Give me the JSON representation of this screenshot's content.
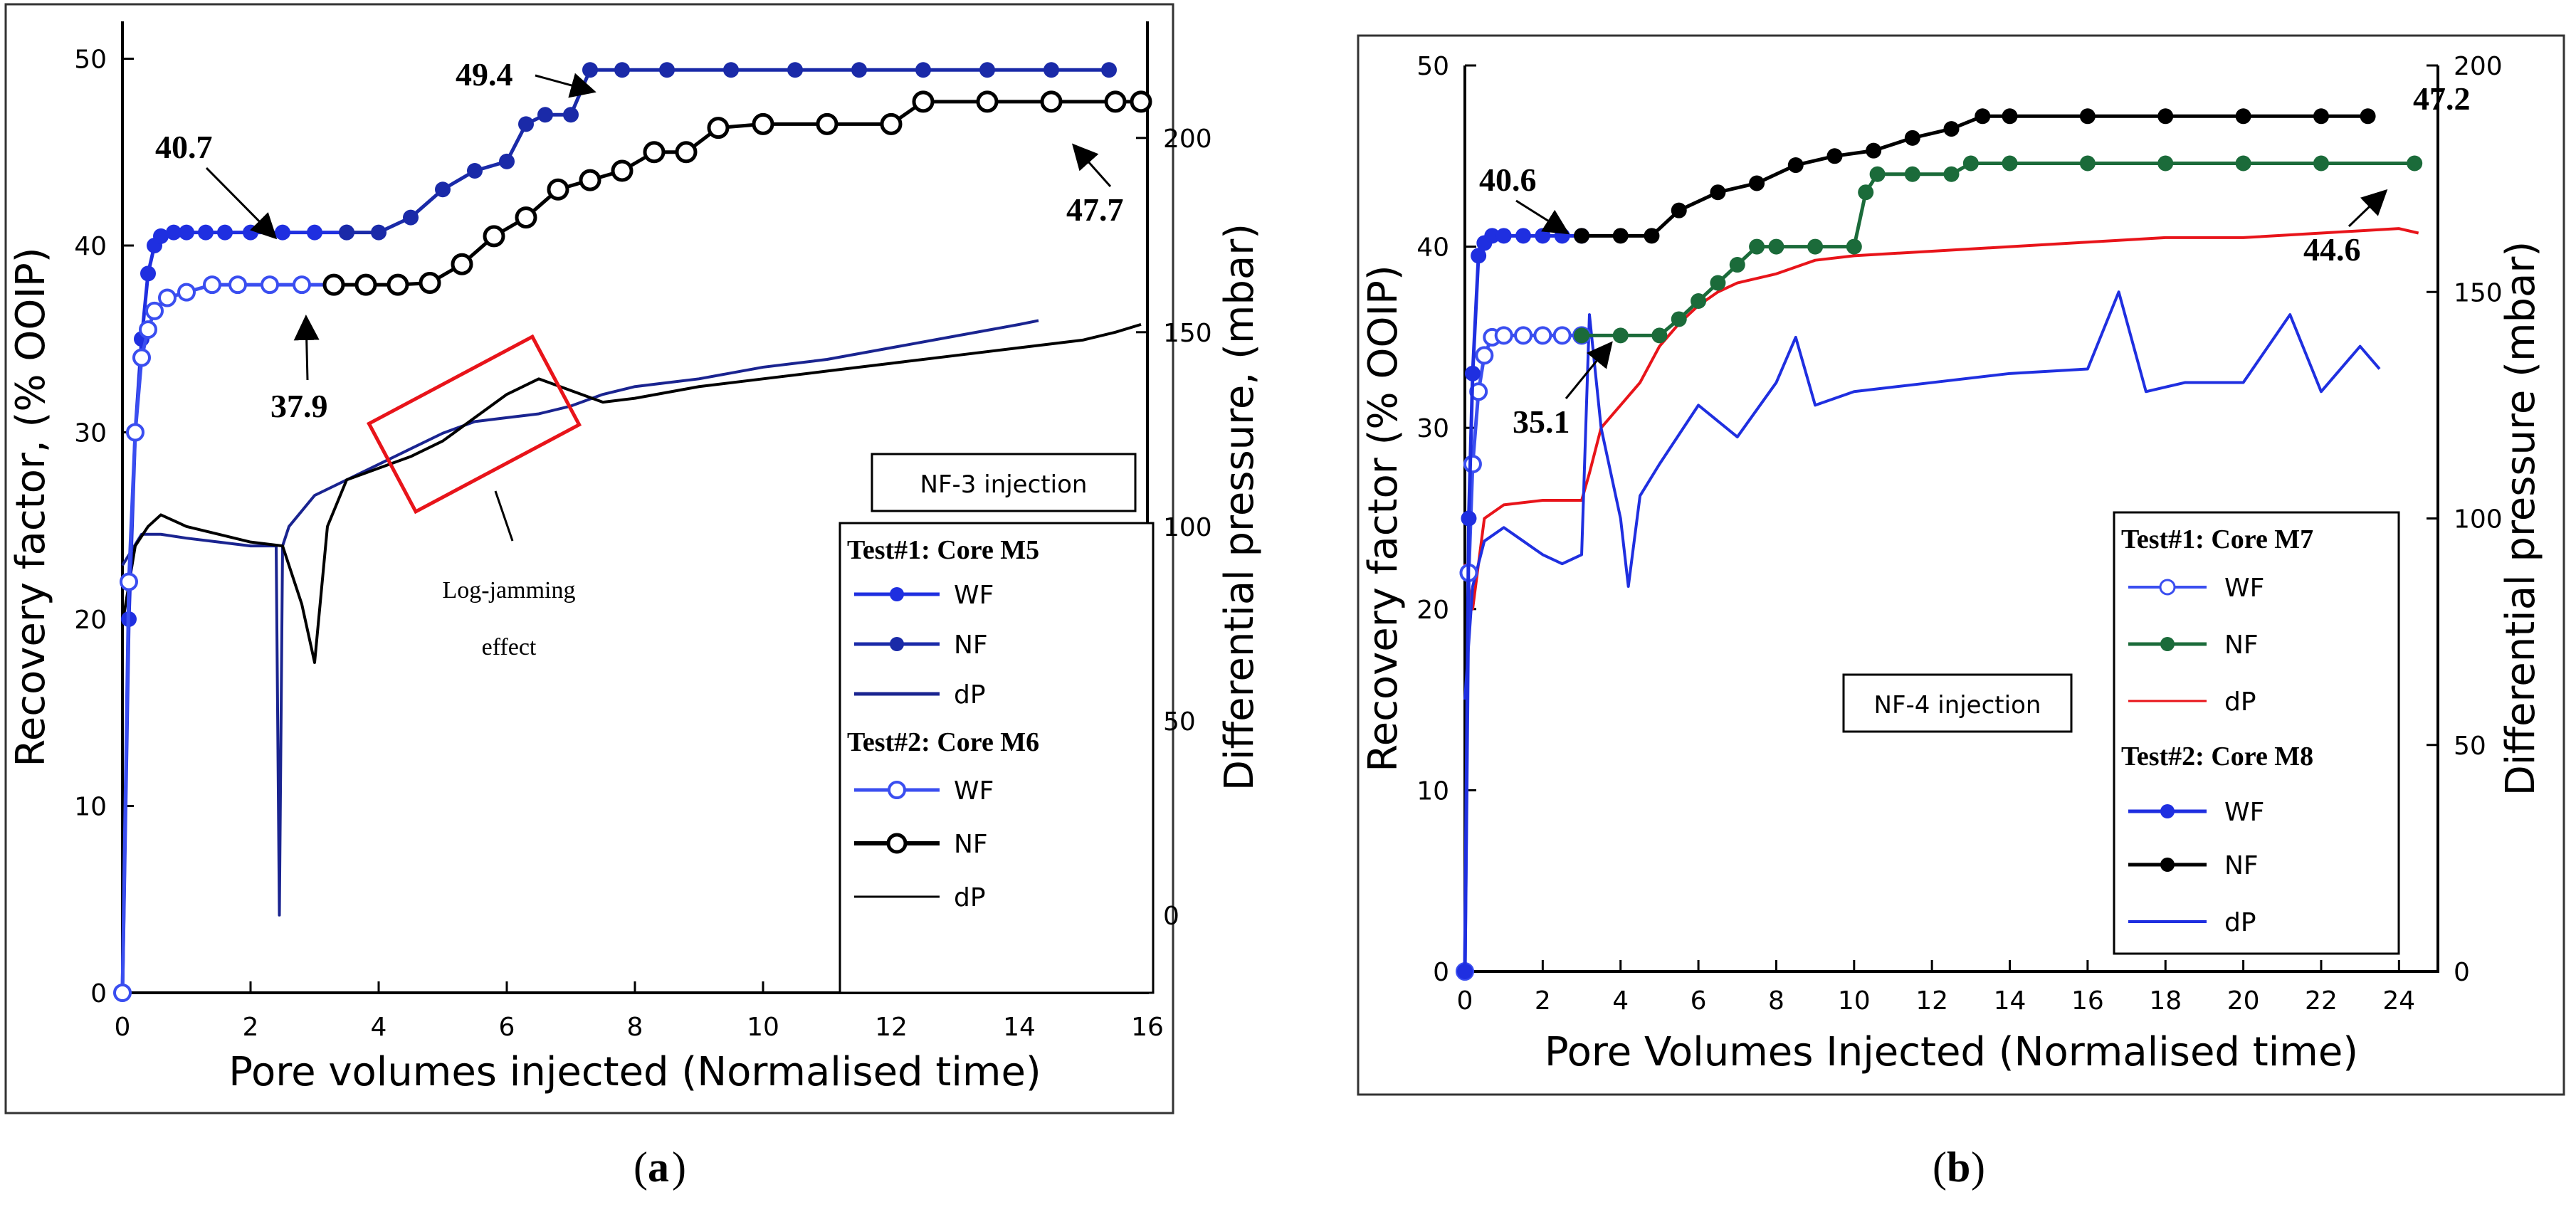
{
  "chart_data": [
    {
      "panel": "a",
      "type": "line",
      "caption_open": "(",
      "caption_letter": "a",
      "caption_close": ")",
      "xlabel": "Pore volumes injected (Normalised time)",
      "ylabel": "Recovery factor, (% OOIP)",
      "y2label": "Differential pressure, (mbar)",
      "xlim": [
        0,
        16
      ],
      "ylim": [
        0,
        52
      ],
      "y2lim": [
        -20,
        230
      ],
      "xticks": [
        0,
        2,
        4,
        6,
        8,
        10,
        12,
        14,
        16
      ],
      "yticks": [
        0,
        10,
        20,
        30,
        40,
        50
      ],
      "y2ticks": [
        0,
        50,
        100,
        150,
        200
      ],
      "injection_label": "NF-3 injection",
      "effect_label_line1": "Log-jamming",
      "effect_label_line2": "effect",
      "annotations": [
        {
          "text": "40.7",
          "x": 1.2,
          "y": 40.7
        },
        {
          "text": "49.4",
          "x": 7.4,
          "y": 49.4
        },
        {
          "text": "37.9",
          "x": 3.4,
          "y": 37.9
        },
        {
          "text": "47.7",
          "x": 15.2,
          "y": 47.7
        }
      ],
      "legend": {
        "groups": [
          {
            "title": "Test#1: Core M5",
            "items": [
              {
                "name": "WF"
              },
              {
                "name": "NF"
              },
              {
                "name": "dP"
              }
            ]
          },
          {
            "title": "Test#2: Core M6",
            "items": [
              {
                "name": "WF"
              },
              {
                "name": "NF"
              },
              {
                "name": "dP"
              }
            ]
          }
        ]
      },
      "series": [
        {
          "name": "Test#1 WF",
          "axis": "left",
          "color": "#1f2fe0",
          "marker": "filled-circle",
          "x": [
            0,
            0.1,
            0.2,
            0.3,
            0.4,
            0.5,
            0.6,
            0.8,
            1.0,
            1.3,
            1.6,
            2.0,
            2.5,
            3.0,
            3.5
          ],
          "y": [
            0,
            20,
            30,
            35,
            38.5,
            40,
            40.5,
            40.7,
            40.7,
            40.7,
            40.7,
            40.7,
            40.7,
            40.7,
            40.7
          ]
        },
        {
          "name": "Test#1 NF",
          "axis": "left",
          "color": "#1a2aa8",
          "marker": "filled-circle",
          "x": [
            3.5,
            4.0,
            4.5,
            5.0,
            5.5,
            6.0,
            6.3,
            6.6,
            7.0,
            7.3,
            7.8,
            8.5,
            9.5,
            10.5,
            11.5,
            12.5,
            13.5,
            14.5,
            15.4
          ],
          "y": [
            40.7,
            40.7,
            41.5,
            43,
            44,
            44.5,
            46.5,
            47,
            47,
            49.4,
            49.4,
            49.4,
            49.4,
            49.4,
            49.4,
            49.4,
            49.4,
            49.4,
            49.4
          ]
        },
        {
          "name": "Test#2 WF",
          "axis": "left",
          "color": "#3a4ef0",
          "marker": "open-circle",
          "x": [
            0,
            0.1,
            0.2,
            0.3,
            0.4,
            0.5,
            0.7,
            1.0,
            1.4,
            1.8,
            2.3,
            2.8,
            3.3
          ],
          "y": [
            0,
            22,
            30,
            34,
            35.5,
            36.5,
            37.2,
            37.5,
            37.9,
            37.9,
            37.9,
            37.9,
            37.9
          ]
        },
        {
          "name": "Test#2 NF",
          "axis": "left",
          "color": "#000000",
          "marker": "hexagon",
          "x": [
            3.3,
            3.8,
            4.3,
            4.8,
            5.3,
            5.8,
            6.3,
            6.8,
            7.3,
            7.8,
            8.3,
            8.8,
            9.3,
            10.0,
            11.0,
            12.0,
            12.5,
            13.5,
            14.5,
            15.5,
            15.9
          ],
          "y": [
            37.9,
            37.9,
            37.9,
            38,
            39,
            40.5,
            41.5,
            43,
            43.5,
            44,
            45,
            45,
            46.3,
            46.5,
            46.5,
            46.5,
            47.7,
            47.7,
            47.7,
            47.7,
            47.7
          ]
        },
        {
          "name": "Test#1 dP",
          "axis": "right",
          "color": "#1a2490",
          "x": [
            0,
            0.3,
            0.6,
            1.0,
            1.5,
            2.0,
            2.4,
            2.45,
            2.5,
            2.6,
            3.0,
            3.5,
            4.0,
            4.5,
            5.0,
            5.5,
            6.0,
            6.5,
            7.0,
            7.5,
            8.0,
            8.5,
            9.0,
            10.0,
            11.0,
            12.0,
            13.0,
            14.0,
            14.3
          ],
          "y": [
            90,
            98,
            98,
            97,
            96,
            95,
            95,
            0,
            95,
            100,
            108,
            112,
            116,
            120,
            124,
            127,
            128,
            129,
            131,
            134,
            136,
            137,
            138,
            141,
            143,
            146,
            149,
            152,
            153
          ]
        },
        {
          "name": "Test#2 dP",
          "axis": "right",
          "color": "#000000",
          "x": [
            0,
            0.2,
            0.4,
            0.6,
            1.0,
            1.5,
            2.0,
            2.5,
            2.8,
            3.0,
            3.2,
            3.5,
            4.0,
            4.5,
            5.0,
            5.5,
            6.0,
            6.5,
            7.0,
            7.5,
            8.0,
            9.0,
            10.0,
            11.0,
            12.0,
            13.0,
            14.0,
            15.0,
            15.5,
            15.9
          ],
          "y": [
            75,
            95,
            100,
            103,
            100,
            98,
            96,
            95,
            80,
            65,
            100,
            112,
            115,
            118,
            122,
            128,
            134,
            138,
            135,
            132,
            133,
            136,
            138,
            140,
            142,
            144,
            146,
            148,
            150,
            152
          ]
        }
      ]
    },
    {
      "panel": "b",
      "type": "line",
      "caption_open": "(",
      "caption_letter": "b",
      "caption_close": ")",
      "xlabel": "Pore Volumes Injected (Normalised time)",
      "ylabel": "Recovery factor (% OOIP)",
      "y2label": "Differential pressure (mbar)",
      "xlim": [
        0,
        25
      ],
      "ylim": [
        0,
        50
      ],
      "y2lim": [
        0,
        200
      ],
      "xticks": [
        0,
        2,
        4,
        6,
        8,
        10,
        12,
        14,
        16,
        18,
        20,
        22,
        24
      ],
      "yticks": [
        0,
        10,
        20,
        30,
        40,
        50
      ],
      "y2ticks": [
        0,
        50,
        100,
        150,
        200
      ],
      "injection_label": "NF-4 injection",
      "annotations": [
        {
          "text": "40.6",
          "x": 2.0,
          "y": 40.6
        },
        {
          "text": "35.1",
          "x": 2.5,
          "y": 35.1
        },
        {
          "text": "47.2",
          "x": 22.8,
          "y": 47.2
        },
        {
          "text": "44.6",
          "x": 21.5,
          "y": 44.6
        }
      ],
      "legend": {
        "groups": [
          {
            "title": "Test#1: Core M7",
            "items": [
              {
                "name": "WF"
              },
              {
                "name": "NF"
              },
              {
                "name": "dP"
              }
            ]
          },
          {
            "title": "Test#2: Core M8",
            "items": [
              {
                "name": "WF"
              },
              {
                "name": "NF"
              },
              {
                "name": "dP"
              }
            ]
          }
        ]
      },
      "series": [
        {
          "name": "Test#1 WF",
          "axis": "left",
          "color": "#3a4ef0",
          "marker": "open-circle",
          "x": [
            0,
            0.1,
            0.2,
            0.35,
            0.5,
            0.7,
            1.0,
            1.5,
            2.0,
            2.5,
            3.0
          ],
          "y": [
            0,
            22,
            28,
            32,
            34,
            35,
            35.1,
            35.1,
            35.1,
            35.1,
            35.1
          ]
        },
        {
          "name": "Test#1 NF",
          "axis": "left",
          "color": "#1b6b3a",
          "marker": "filled-circle",
          "x": [
            3.0,
            4.0,
            5.0,
            5.5,
            6.0,
            6.5,
            7.0,
            7.5,
            8.0,
            9.0,
            10.0,
            10.3,
            10.6,
            11.5,
            12.5,
            13.0,
            14.0,
            16.0,
            18.0,
            20.0,
            22.0,
            24.4
          ],
          "y": [
            35.1,
            35.1,
            35.1,
            36,
            37,
            38,
            39,
            40,
            40,
            40,
            40,
            43,
            44,
            44,
            44,
            44.6,
            44.6,
            44.6,
            44.6,
            44.6,
            44.6,
            44.6
          ]
        },
        {
          "name": "Test#1 dP",
          "axis": "right",
          "color": "#e8141a",
          "x": [
            0,
            0.2,
            0.5,
            1.0,
            2.0,
            3.0,
            3.2,
            3.5,
            4.0,
            4.5,
            5.0,
            5.5,
            6.0,
            6.5,
            7.0,
            8.0,
            9.0,
            10.0,
            12.0,
            14.0,
            16.0,
            18.0,
            20.0,
            22.0,
            24.0,
            24.5
          ],
          "y": [
            90,
            80,
            100,
            103,
            104,
            104,
            110,
            120,
            125,
            130,
            138,
            143,
            147,
            150,
            152,
            154,
            157,
            158,
            159,
            160,
            161,
            162,
            162,
            163,
            164,
            163
          ]
        },
        {
          "name": "Test#2 WF",
          "axis": "left",
          "color": "#1f2fe0",
          "marker": "filled-circle",
          "x": [
            0,
            0.1,
            0.2,
            0.35,
            0.5,
            0.7,
            1.0,
            1.5,
            2.0,
            2.5,
            3.0
          ],
          "y": [
            0,
            25,
            33,
            39.5,
            40.2,
            40.6,
            40.6,
            40.6,
            40.6,
            40.6,
            40.6
          ]
        },
        {
          "name": "Test#2 NF",
          "axis": "left",
          "color": "#000000",
          "marker": "filled-circle",
          "x": [
            3.0,
            4.0,
            4.8,
            5.5,
            6.5,
            7.5,
            8.5,
            9.5,
            10.5,
            11.5,
            12.5,
            13.3,
            14.0,
            16.0,
            18.0,
            20.0,
            22.0,
            23.2
          ],
          "y": [
            40.6,
            40.6,
            40.6,
            42,
            43,
            43.5,
            44.5,
            45,
            45.3,
            46,
            46.5,
            47.2,
            47.2,
            47.2,
            47.2,
            47.2,
            47.2,
            47.2
          ]
        },
        {
          "name": "Test#2 dP",
          "axis": "right",
          "color": "#1f2fe0",
          "x": [
            0,
            0.2,
            0.5,
            1.0,
            1.5,
            2.0,
            2.5,
            3.0,
            3.2,
            3.5,
            4.0,
            4.2,
            4.5,
            5.0,
            6.0,
            7.0,
            8.0,
            8.5,
            9.0,
            10.0,
            12.0,
            14.0,
            16.0,
            16.8,
            17.5,
            18.5,
            20.0,
            21.2,
            22.0,
            23.0,
            23.5
          ],
          "y": [
            60,
            85,
            95,
            98,
            95,
            92,
            90,
            92,
            145,
            120,
            100,
            85,
            105,
            112,
            125,
            118,
            130,
            140,
            125,
            128,
            130,
            132,
            133,
            150,
            128,
            130,
            130,
            145,
            128,
            138,
            133
          ]
        }
      ]
    }
  ]
}
